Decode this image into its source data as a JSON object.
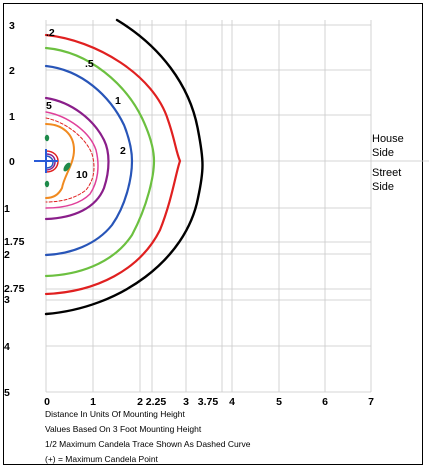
{
  "axes": {
    "y_upper_labels": [
      "3",
      "2",
      "1",
      "0"
    ],
    "y_lower_labels": [
      "1",
      "1.75",
      "2",
      "2.75",
      "3",
      "4",
      "5"
    ],
    "x_labels": [
      "0",
      "1",
      "2",
      "2.25",
      "3",
      "3.75",
      "4",
      "5",
      "6",
      "7"
    ]
  },
  "side_labels": {
    "house": [
      "House",
      "Side"
    ],
    "street": [
      "Street",
      "Side"
    ]
  },
  "contour_labels": [
    ".2",
    ".5",
    "1",
    "2",
    "5",
    "10"
  ],
  "contour_colors": {
    "0.2": "#000000",
    "0.5": "#e02020",
    "1": "#6cc040",
    "2": "#2855b8",
    "5": "#8a1e8a",
    "10": "#f08a20",
    "inner": "#e0409a",
    "green_marks": "#1e8a4a",
    "max_marker": "#2a5bd7"
  },
  "notes": [
    "Distance In Units Of Mounting Height",
    "Values Based On 3 Foot Mounting Height",
    "1/2 Maximum Candela Trace Shown As Dashed Curve",
    "(+) = Maximum Candela Point"
  ]
}
